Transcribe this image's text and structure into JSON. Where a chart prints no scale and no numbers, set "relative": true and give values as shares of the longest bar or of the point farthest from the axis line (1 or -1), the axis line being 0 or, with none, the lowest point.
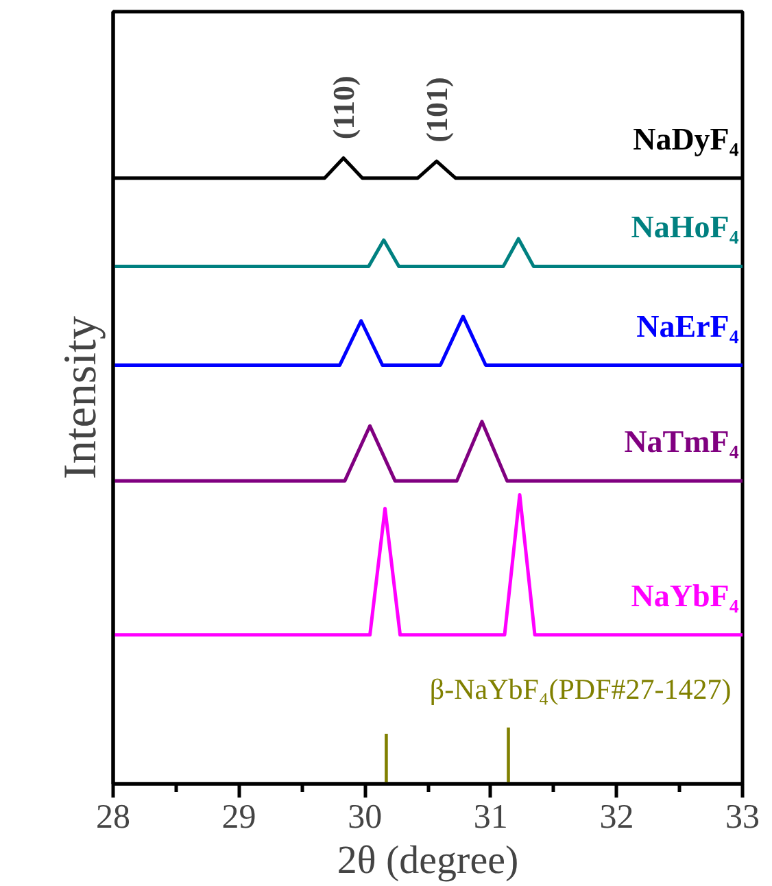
{
  "chart_data": {
    "type": "line",
    "relative": true,
    "xlabel": "2θ (degree)",
    "ylabel": "Intensity",
    "xlim": [
      28,
      33
    ],
    "xticks": [
      28,
      {
        "value": 28.5,
        "label": null
      },
      29,
      {
        "value": 29.5,
        "label": null
      },
      30,
      {
        "value": 30.5,
        "label": null
      },
      31,
      {
        "value": 31.5,
        "label": null
      },
      32,
      {
        "value": 32.5,
        "label": null
      },
      33
    ],
    "annotations": [
      {
        "text": "(110)",
        "x": 29.83,
        "y": 1.0
      },
      {
        "text": "(101)",
        "x": 30.57,
        "y": 0.995
      }
    ],
    "series": [
      {
        "name": "NaDyF₄",
        "color": "#000000",
        "x": [
          28,
          29.68,
          29.83,
          29.98,
          30.42,
          30.57,
          30.72,
          33
        ],
        "values": [
          0.968,
          0.968,
          1.0,
          0.968,
          0.968,
          0.995,
          0.968,
          0.968
        ]
      },
      {
        "name": "NaHoF₄",
        "color": "#008080",
        "x": [
          28,
          30.03,
          30.15,
          30.27,
          31.1,
          31.22,
          31.34,
          33
        ],
        "values": [
          0.827,
          0.827,
          0.869,
          0.827,
          0.827,
          0.871,
          0.827,
          0.827
        ]
      },
      {
        "name": "NaErF₄",
        "color": "#0000ff",
        "x": [
          28,
          29.8,
          29.97,
          30.14,
          30.6,
          30.78,
          30.96,
          33
        ],
        "values": [
          0.669,
          0.669,
          0.74,
          0.669,
          0.669,
          0.747,
          0.669,
          0.669
        ]
      },
      {
        "name": "NaTmF₄",
        "color": "#800080",
        "x": [
          28,
          29.84,
          30.04,
          30.24,
          30.73,
          30.93,
          31.13,
          33
        ],
        "values": [
          0.484,
          0.484,
          0.572,
          0.484,
          0.484,
          0.579,
          0.484,
          0.484
        ]
      },
      {
        "name": "NaYbF₄",
        "color": "#ff00ff",
        "x": [
          28,
          30.04,
          30.16,
          30.28,
          31.11,
          31.23,
          31.35,
          33
        ],
        "values": [
          0.238,
          0.238,
          0.44,
          0.238,
          0.238,
          0.462,
          0.238,
          0.238
        ]
      },
      {
        "name": "β-NaYbF₄(PDF#27-1427)",
        "type": "bar",
        "color": "#808000",
        "x": [
          30.17,
          31.14
        ],
        "values": [
          0.08,
          0.09
        ]
      }
    ]
  }
}
